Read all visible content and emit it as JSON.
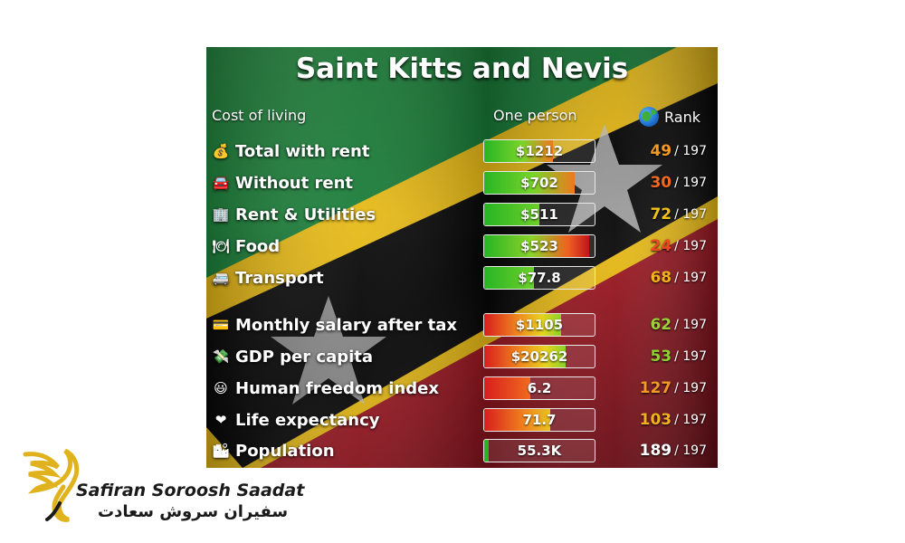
{
  "title": "Saint Kitts and Nevis",
  "headers": {
    "col1": "Cost of living",
    "col2": "One person",
    "col3": "Rank"
  },
  "rows": [
    {
      "icon": "money-bag-icon",
      "glyph": "💰",
      "label": "Total with rent",
      "value": "$1212",
      "rank": "49",
      "of": "/ 197",
      "fill": 0.62,
      "rank_color": "#f29a26",
      "bar_scheme": "green-orange"
    },
    {
      "icon": "car-icon",
      "glyph": "🚘",
      "label": "Without rent",
      "value": "$702",
      "rank": "30",
      "of": "/ 197",
      "fill": 0.82,
      "rank_color": "#f06a24",
      "bar_scheme": "green-orange"
    },
    {
      "icon": "building-icon",
      "glyph": "🏢",
      "label": "Rent & Utilities",
      "value": "$511",
      "rank": "72",
      "of": "/ 197",
      "fill": 0.5,
      "rank_color": "#f2c21a",
      "bar_scheme": "green"
    },
    {
      "icon": "plate-icon",
      "glyph": "🍽",
      "label": "Food",
      "value": "$523",
      "rank": "24",
      "of": "/ 197",
      "fill": 0.95,
      "rank_color": "#ee4a22",
      "bar_scheme": "green-red"
    },
    {
      "icon": "van-icon",
      "glyph": "🚐",
      "label": "Transport",
      "value": "$77.8",
      "rank": "68",
      "of": "/ 197",
      "fill": 0.45,
      "rank_color": "#f2b11e",
      "bar_scheme": "green"
    },
    {
      "icon": "credit-card-icon",
      "glyph": "💳",
      "label": "Monthly salary after tax",
      "value": "$1105",
      "rank": "62",
      "of": "/ 197",
      "fill": 0.7,
      "rank_color": "#9bd23a",
      "bar_scheme": "red-green"
    },
    {
      "icon": "money-wings-icon",
      "glyph": "💸",
      "label": "GDP per capita",
      "value": "$20262",
      "rank": "53",
      "of": "/ 197",
      "fill": 0.74,
      "rank_color": "#8fd134",
      "bar_scheme": "red-green"
    },
    {
      "icon": "smiley-icon",
      "glyph": "😃",
      "label": "Human freedom index",
      "value": "6.2",
      "rank": "127",
      "of": "/ 197",
      "fill": 0.42,
      "rank_color": "#f29a26",
      "bar_scheme": "red-orange"
    },
    {
      "icon": "heart-icon",
      "glyph": "❤",
      "label": "Life expectancy",
      "value": "71.7",
      "rank": "103",
      "of": "/ 197",
      "fill": 0.6,
      "rank_color": "#f2b11e",
      "bar_scheme": "red-orange-yellow"
    },
    {
      "icon": "city-icon",
      "glyph": "🏙",
      "label": "Population",
      "value": "55.3K",
      "rank": "189",
      "of": "/ 197",
      "fill": 0.04,
      "rank_color": "#ffffff",
      "bar_scheme": "green-thin"
    }
  ],
  "logo": {
    "name": "Safiran Soroosh Saadat",
    "name_fa": "سفیران سروش سعادت"
  },
  "colors": {
    "flag_green": "#1f8a3a",
    "flag_red": "#b51e2a",
    "flag_yellow": "#f5c518",
    "flag_black": "#0b0b0b",
    "logo_gold": "#e0b21e"
  }
}
